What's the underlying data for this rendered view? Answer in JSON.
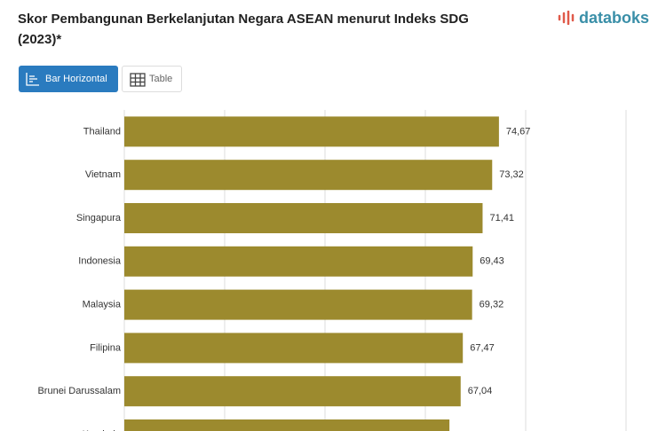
{
  "header": {
    "title": "Skor Pembangunan Berkelanjutan Negara ASEAN menurut Indeks SDG (2023)*",
    "brand": "databoks",
    "tabs": [
      "Bar Horizontal",
      "Table"
    ]
  },
  "chart_data": {
    "type": "barh",
    "categories": [
      "Thailand",
      "Vietnam",
      "Singapura",
      "Indonesia",
      "Malaysia",
      "Filipina",
      "Brunei Darussalam",
      "Kamboja"
    ],
    "values": [
      74.67,
      73.32,
      71.41,
      69.43,
      69.32,
      67.47,
      67.04,
      64.8
    ],
    "value_labels": [
      "74,67",
      "73,32",
      "71,41",
      "69,43",
      "69,32",
      "67,47",
      "67,04",
      null
    ],
    "color": "#9c8a2e",
    "xlim": [
      0,
      100
    ],
    "xticks": [
      0,
      20,
      40,
      60,
      80,
      100
    ],
    "grid": true
  }
}
